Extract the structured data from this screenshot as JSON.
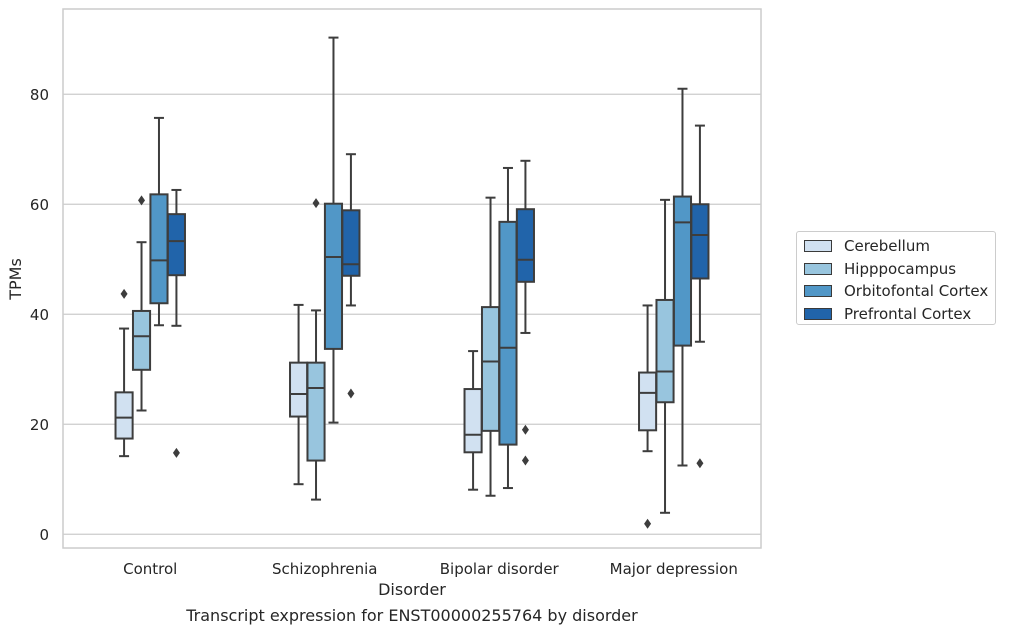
{
  "chart_data": {
    "type": "box",
    "xlabel": "Disorder",
    "ylabel": "TPMs",
    "ylim": [
      -2.5,
      95.5
    ],
    "yticks": [
      0,
      20,
      40,
      60,
      80
    ],
    "grid": "horizontal",
    "legend_position": "right",
    "categories": [
      "Control",
      "Schizophrenia",
      "Bipolar disorder",
      "Major depression"
    ],
    "series": [
      {
        "name": "Cerebellum",
        "color": "#d1e1f1",
        "boxes": [
          {
            "whisker_low": 14.2,
            "q1": 17.4,
            "median": 21.2,
            "q3": 25.8,
            "whisker_high": 37.4,
            "outliers": [
              43.7
            ]
          },
          {
            "whisker_low": 9.1,
            "q1": 21.4,
            "median": 25.5,
            "q3": 31.2,
            "whisker_high": 41.7,
            "outliers": []
          },
          {
            "whisker_low": 8.1,
            "q1": 14.9,
            "median": 18.1,
            "q3": 26.4,
            "whisker_high": 33.3,
            "outliers": []
          },
          {
            "whisker_low": 15.1,
            "q1": 18.9,
            "median": 25.7,
            "q3": 29.4,
            "whisker_high": 41.6,
            "outliers": [
              1.9
            ]
          }
        ]
      },
      {
        "name": "Hipppocampus",
        "color": "#98c5de",
        "boxes": [
          {
            "whisker_low": 22.5,
            "q1": 29.9,
            "median": 36.0,
            "q3": 40.6,
            "whisker_high": 53.1,
            "outliers": [
              60.7
            ]
          },
          {
            "whisker_low": 6.3,
            "q1": 13.4,
            "median": 26.6,
            "q3": 31.2,
            "whisker_high": 40.7,
            "outliers": [
              60.2
            ]
          },
          {
            "whisker_low": 7.0,
            "q1": 18.8,
            "median": 31.4,
            "q3": 41.3,
            "whisker_high": 61.2,
            "outliers": []
          },
          {
            "whisker_low": 3.9,
            "q1": 24.0,
            "median": 29.6,
            "q3": 42.6,
            "whisker_high": 60.8,
            "outliers": []
          }
        ]
      },
      {
        "name": "Orbitofontal Cortex",
        "color": "#5197c7",
        "boxes": [
          {
            "whisker_low": 38.0,
            "q1": 42.0,
            "median": 49.8,
            "q3": 61.8,
            "whisker_high": 75.7,
            "outliers": []
          },
          {
            "whisker_low": 20.3,
            "q1": 33.7,
            "median": 50.4,
            "q3": 60.1,
            "whisker_high": 90.3,
            "outliers": []
          },
          {
            "whisker_low": 8.4,
            "q1": 16.3,
            "median": 33.9,
            "q3": 56.8,
            "whisker_high": 66.6,
            "outliers": []
          },
          {
            "whisker_low": 12.5,
            "q1": 34.3,
            "median": 56.7,
            "q3": 61.4,
            "whisker_high": 81.0,
            "outliers": []
          }
        ]
      },
      {
        "name": "Prefrontal Cortex",
        "color": "#2164aa",
        "boxes": [
          {
            "whisker_low": 37.9,
            "q1": 47.1,
            "median": 53.3,
            "q3": 58.2,
            "whisker_high": 62.6,
            "outliers": [
              14.8
            ]
          },
          {
            "whisker_low": 41.6,
            "q1": 47.0,
            "median": 49.1,
            "q3": 58.9,
            "whisker_high": 69.1,
            "outliers": [
              25.6
            ]
          },
          {
            "whisker_low": 36.6,
            "q1": 45.9,
            "median": 49.9,
            "q3": 59.1,
            "whisker_high": 67.9,
            "outliers": [
              13.4,
              19.0
            ]
          },
          {
            "whisker_low": 35.0,
            "q1": 46.5,
            "median": 54.4,
            "q3": 60.0,
            "whisker_high": 74.3,
            "outliers": [
              12.9
            ]
          }
        ]
      }
    ]
  },
  "caption": "Transcript expression for ENST00000255764 by disorder"
}
